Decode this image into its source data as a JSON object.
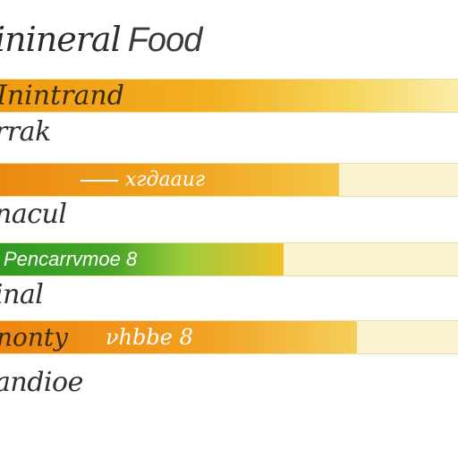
{
  "chart_data": {
    "type": "bar",
    "orientation": "horizontal",
    "title": "inineral Food",
    "bars": [
      {
        "label_above": "",
        "label_in": "Inintrand",
        "value_text": "",
        "value": 1.0,
        "fill_color": "#f0a21a"
      },
      {
        "label_above": "rrak",
        "label_in": "",
        "value_text": "хгдааиг",
        "value": 0.74,
        "fill_color": "#ee8f12"
      },
      {
        "label_above": "nacul",
        "label_in": "",
        "value_text": "Pencarrvmoe 8",
        "value": 0.62,
        "fill_color": "#3e9d1f"
      },
      {
        "label_above": "inal",
        "label_in": "",
        "value_text": "νhbbe 8",
        "value": 0.78,
        "fill_color": "#ef8f14"
      }
    ],
    "extra_label": "andioe"
  },
  "title_parts": {
    "left": "inineral",
    "right": "Food"
  },
  "labels": {
    "row1_in": "Inintrand",
    "row2_above": "rrak",
    "row2_value": "хгдааиг",
    "row3_above": "nacul",
    "row3_value": "Pencarrvmoe 8",
    "row4_above": "inal",
    "row4_prefix": "nonty",
    "row4_value": "νhbbe 8",
    "bottom": "andioe"
  },
  "colors": {
    "orange": "#f0a21a",
    "deep_orange": "#ee8f12",
    "green": "#3e9d1f",
    "track": "#fbf3cf"
  }
}
